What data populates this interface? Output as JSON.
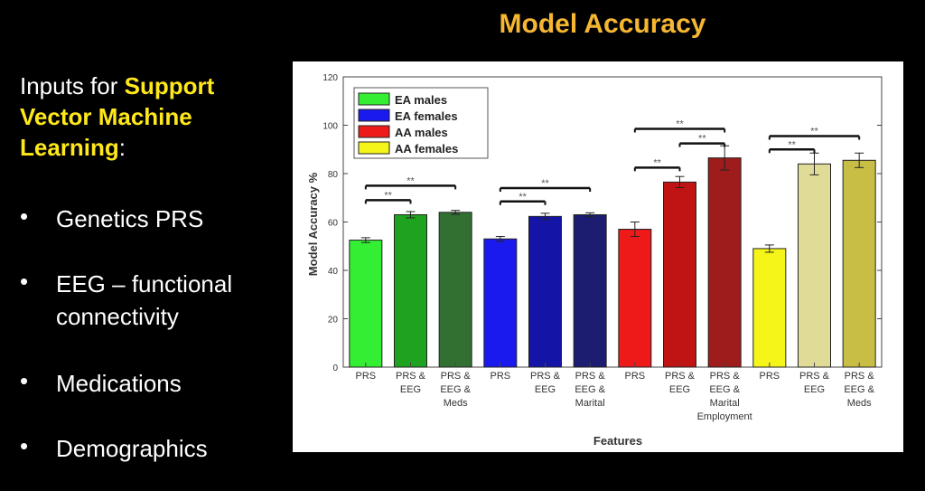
{
  "slide": {
    "title": "Model Accuracy",
    "intro_pre": "Inputs for ",
    "intro_highlight": "Support Vector Machine Learning",
    "intro_post": ":",
    "bullets": [
      "Genetics PRS",
      "EEG – functional connectivity",
      "Medications",
      "Demographics"
    ],
    "bullet_symbol": "•"
  },
  "chart_data": {
    "type": "bar",
    "xlabel": "Features",
    "ylabel": "Model Accuracy %",
    "ylim": [
      0,
      120
    ],
    "yticks": [
      0,
      20,
      40,
      60,
      80,
      100,
      120
    ],
    "grid": false,
    "legend_position": "top-left",
    "significance_label": "**",
    "legend": [
      {
        "name": "EA males",
        "color": "#33ee33"
      },
      {
        "name": "EA females",
        "color": "#1a1aee"
      },
      {
        "name": "AA males",
        "color": "#ee1a1a"
      },
      {
        "name": "AA females",
        "color": "#f5f51a"
      }
    ],
    "bars": [
      {
        "group": "EA males",
        "label": [
          "PRS"
        ],
        "value": 52.5,
        "error": 1.0,
        "color": "#33ee33"
      },
      {
        "group": "EA males",
        "label": [
          "PRS &",
          "EEG"
        ],
        "value": 63,
        "error": 1.3,
        "color": "#1fa21f"
      },
      {
        "group": "EA males",
        "label": [
          "PRS &",
          "EEG &",
          "Meds"
        ],
        "value": 64,
        "error": 0.8,
        "color": "#327032"
      },
      {
        "group": "EA females",
        "label": [
          "PRS"
        ],
        "value": 53,
        "error": 1.0,
        "color": "#1a1aee"
      },
      {
        "group": "EA females",
        "label": [
          "PRS &",
          "EEG"
        ],
        "value": 62.3,
        "error": 1.3,
        "color": "#1414a6"
      },
      {
        "group": "EA females",
        "label": [
          "PRS &",
          "EEG &",
          "Marital"
        ],
        "value": 63,
        "error": 0.8,
        "color": "#1c1c70"
      },
      {
        "group": "AA males",
        "label": [
          "PRS"
        ],
        "value": 57,
        "error": 3.0,
        "color": "#ee1a1a"
      },
      {
        "group": "AA males",
        "label": [
          "PRS &",
          "EEG"
        ],
        "value": 76.5,
        "error": 2.3,
        "color": "#c01414"
      },
      {
        "group": "AA males",
        "label": [
          "PRS &",
          "EEG &",
          "Marital",
          "Employment"
        ],
        "value": 86.5,
        "error": 5.0,
        "color": "#9e1c1c"
      },
      {
        "group": "AA females",
        "label": [
          "PRS"
        ],
        "value": 49,
        "error": 1.5,
        "color": "#f5f51a"
      },
      {
        "group": "AA females",
        "label": [
          "PRS &",
          "EEG"
        ],
        "value": 84,
        "error": 4.5,
        "color": "#e0dc98"
      },
      {
        "group": "AA females",
        "label": [
          "PRS &",
          "EEG &",
          "Meds"
        ],
        "value": 85.5,
        "error": 3.0,
        "color": "#c9be45"
      }
    ],
    "significance": [
      {
        "from": 0,
        "to": 1,
        "y": 69
      },
      {
        "from": 0,
        "to": 2,
        "y": 75
      },
      {
        "from": 3,
        "to": 4,
        "y": 68.5
      },
      {
        "from": 3,
        "to": 5,
        "y": 74
      },
      {
        "from": 6,
        "to": 7,
        "y": 82.5
      },
      {
        "from": 6,
        "to": 8,
        "y": 98.5
      },
      {
        "from": 7,
        "to": 8,
        "y": 92.5
      },
      {
        "from": 9,
        "to": 10,
        "y": 90
      },
      {
        "from": 9,
        "to": 11,
        "y": 95.5
      }
    ]
  }
}
